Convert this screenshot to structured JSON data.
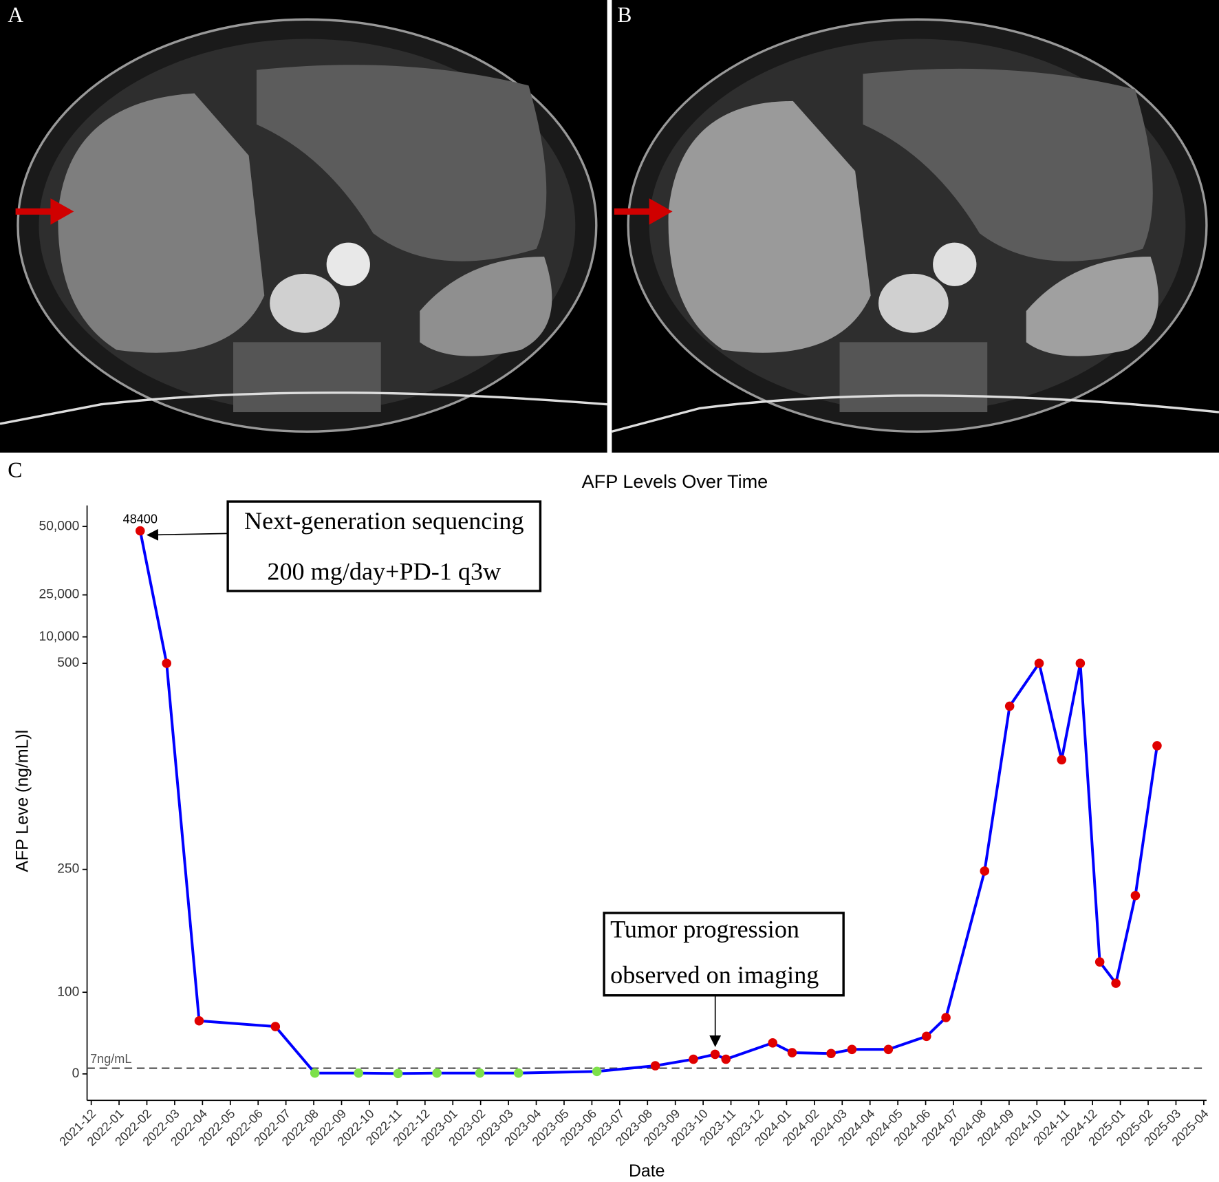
{
  "panel_labels": [
    "A",
    "B",
    "C"
  ],
  "chart_data": {
    "type": "line",
    "title": "AFP Levels Over Time",
    "x_label": "Date",
    "y_label": "AFP Leve (ng/mL)l",
    "x": [
      1.76,
      2.71,
      3.88,
      6.62,
      8.04,
      9.61,
      11.03,
      12.43,
      13.97,
      15.36,
      18.18,
      20.28,
      21.65,
      22.43,
      22.82,
      24.5,
      25.2,
      26.6,
      27.35,
      28.66,
      30.03,
      30.73,
      32.12,
      33.02,
      34.08,
      34.89,
      35.56,
      36.26,
      36.84,
      37.54,
      38.32
    ],
    "series": [
      {
        "color": "#0000ff",
        "values": [
          48400,
          505,
          65,
          58,
          1,
          1,
          0.5,
          1,
          1,
          1,
          3,
          10,
          18,
          24,
          18,
          38,
          26,
          25,
          30,
          30,
          46,
          69,
          248,
          448,
          502,
          383,
          505,
          137,
          111,
          218,
          400
        ],
        "value_labels": [
          "48400",
          null,
          null,
          null,
          null,
          null,
          null,
          null,
          null,
          null,
          null,
          null,
          null,
          null,
          null,
          null,
          null,
          null,
          null,
          null,
          null,
          null,
          null,
          null,
          null,
          null,
          null,
          null,
          null,
          null,
          null
        ],
        "marker_colors": [
          "#e00000",
          "#e00000",
          "#e00000",
          "#e00000",
          "#7de04a",
          "#7de04a",
          "#7de04a",
          "#7de04a",
          "#7de04a",
          "#7de04a",
          "#7de04a",
          "#e00000",
          "#e00000",
          "#e00000",
          "#e00000",
          "#e00000",
          "#e00000",
          "#e00000",
          "#e00000",
          "#e00000",
          "#e00000",
          "#e00000",
          "#e00000",
          "#e00000",
          "#e00000",
          "#e00000",
          "#e00000",
          "#e00000",
          "#e00000",
          "#e00000",
          "#e00000"
        ]
      }
    ],
    "xlim": [
      -0.15,
      40.1
    ],
    "xticks": [
      {
        "value": 0,
        "label": "2021-12"
      },
      {
        "value": 1,
        "label": "2022-01"
      },
      {
        "value": 2,
        "label": "2022-02"
      },
      {
        "value": 3,
        "label": "2022-03"
      },
      {
        "value": 4,
        "label": "2022-04"
      },
      {
        "value": 5,
        "label": "2022-05"
      },
      {
        "value": 6,
        "label": "2022-06"
      },
      {
        "value": 7,
        "label": "2022-07"
      },
      {
        "value": 8,
        "label": "2022-08"
      },
      {
        "value": 9,
        "label": "2022-09"
      },
      {
        "value": 10,
        "label": "2022-10"
      },
      {
        "value": 11,
        "label": "2022-11"
      },
      {
        "value": 12,
        "label": "2022-12"
      },
      {
        "value": 13,
        "label": "2023-01"
      },
      {
        "value": 14,
        "label": "2023-02"
      },
      {
        "value": 15,
        "label": "2023-03"
      },
      {
        "value": 16,
        "label": "2023-04"
      },
      {
        "value": 17,
        "label": "2023-05"
      },
      {
        "value": 18,
        "label": "2023-06"
      },
      {
        "value": 19,
        "label": "2023-07"
      },
      {
        "value": 20,
        "label": "2023-08"
      },
      {
        "value": 21,
        "label": "2023-09"
      },
      {
        "value": 22,
        "label": "2023-10"
      },
      {
        "value": 23,
        "label": "2023-11"
      },
      {
        "value": 24,
        "label": "2023-12"
      },
      {
        "value": 25,
        "label": "2024-01"
      },
      {
        "value": 26,
        "label": "2024-02"
      },
      {
        "value": 27,
        "label": "2024-03"
      },
      {
        "value": 28,
        "label": "2024-04"
      },
      {
        "value": 29,
        "label": "2024-05"
      },
      {
        "value": 30,
        "label": "2024-06"
      },
      {
        "value": 31,
        "label": "2024-07"
      },
      {
        "value": 32,
        "label": "2024-08"
      },
      {
        "value": 33,
        "label": "2024-09"
      },
      {
        "value": 34,
        "label": "2024-10"
      },
      {
        "value": 35,
        "label": "2024-11"
      },
      {
        "value": 36,
        "label": "2024-12"
      },
      {
        "value": 37,
        "label": "2025-01"
      },
      {
        "value": 38,
        "label": "2025-02"
      },
      {
        "value": 39,
        "label": "2025-03"
      },
      {
        "value": 40,
        "label": "2025-04"
      }
    ],
    "yticks": [
      0,
      100,
      250,
      500,
      {
        "value": 10000,
        "label": "10,000"
      },
      {
        "value": 25000,
        "label": "25,000"
      },
      {
        "value": 50000,
        "label": "50,000"
      }
    ],
    "reference_line": {
      "value": 7,
      "label": "7ng/mL",
      "color": "#555555"
    },
    "annotations": [
      {
        "lines": [
          "Next-generation sequencing",
          "200 mg/day+PD-1 q3w"
        ]
      },
      {
        "lines": [
          "Tumor progression",
          "observed on imaging"
        ]
      }
    ]
  }
}
